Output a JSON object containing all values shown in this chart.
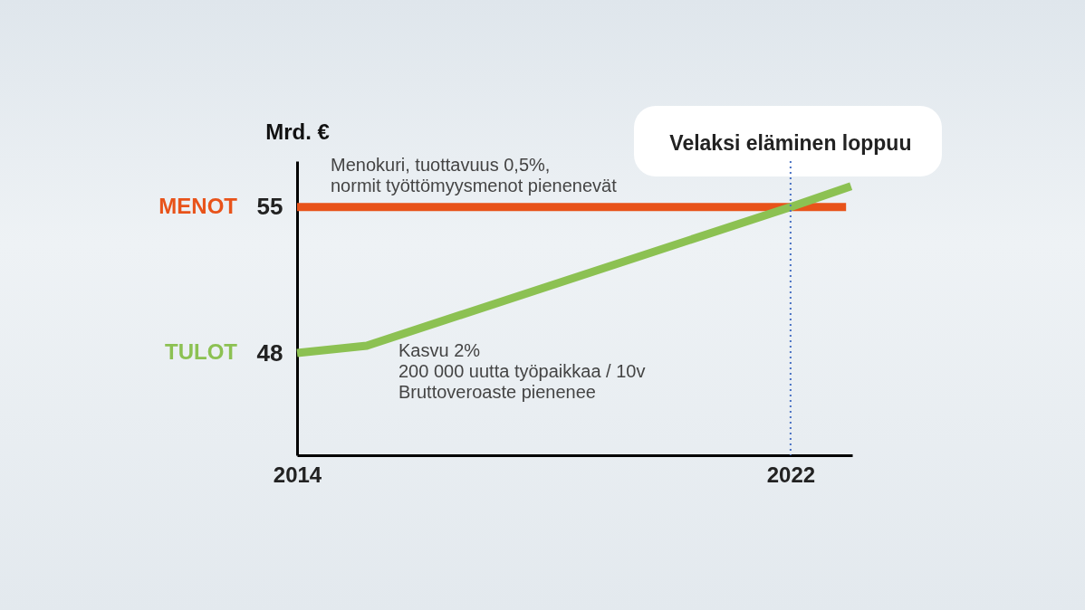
{
  "chart_data": {
    "type": "line",
    "ylabel": "Mrd. €",
    "series": [
      {
        "name": "MENOT",
        "color": "#e8531a",
        "x": [
          2014,
          2022.9
        ],
        "values": [
          55,
          55
        ]
      },
      {
        "name": "TULOT",
        "color": "#8cc152",
        "x": [
          2014,
          2015.13,
          2022,
          2022.98
        ],
        "values": [
          48,
          48.35,
          55,
          56
        ]
      }
    ],
    "xlim": [
      2014,
      2023
    ],
    "xticks": [
      2014,
      2022
    ],
    "ylim": [
      43.1,
      57.2
    ],
    "yticks": [
      48,
      55
    ],
    "ref_lines": [
      {
        "axis": "x",
        "value": 2022,
        "color": "#4a72c4",
        "line_style": "dotted"
      }
    ],
    "annotations": [
      {
        "text": "Velaksi eläminen loppuu",
        "x": 2022,
        "y": 55
      },
      "Menokuri, tuottavuus 0,5%,\nnormit työttömyysmenot pienenevät",
      "Kasvu 2%\n200 000 uutta työpaikkaa / 10v\nBruttoveroaste pienenee"
    ],
    "grid": false,
    "marker": "none",
    "line_style": "solid"
  }
}
